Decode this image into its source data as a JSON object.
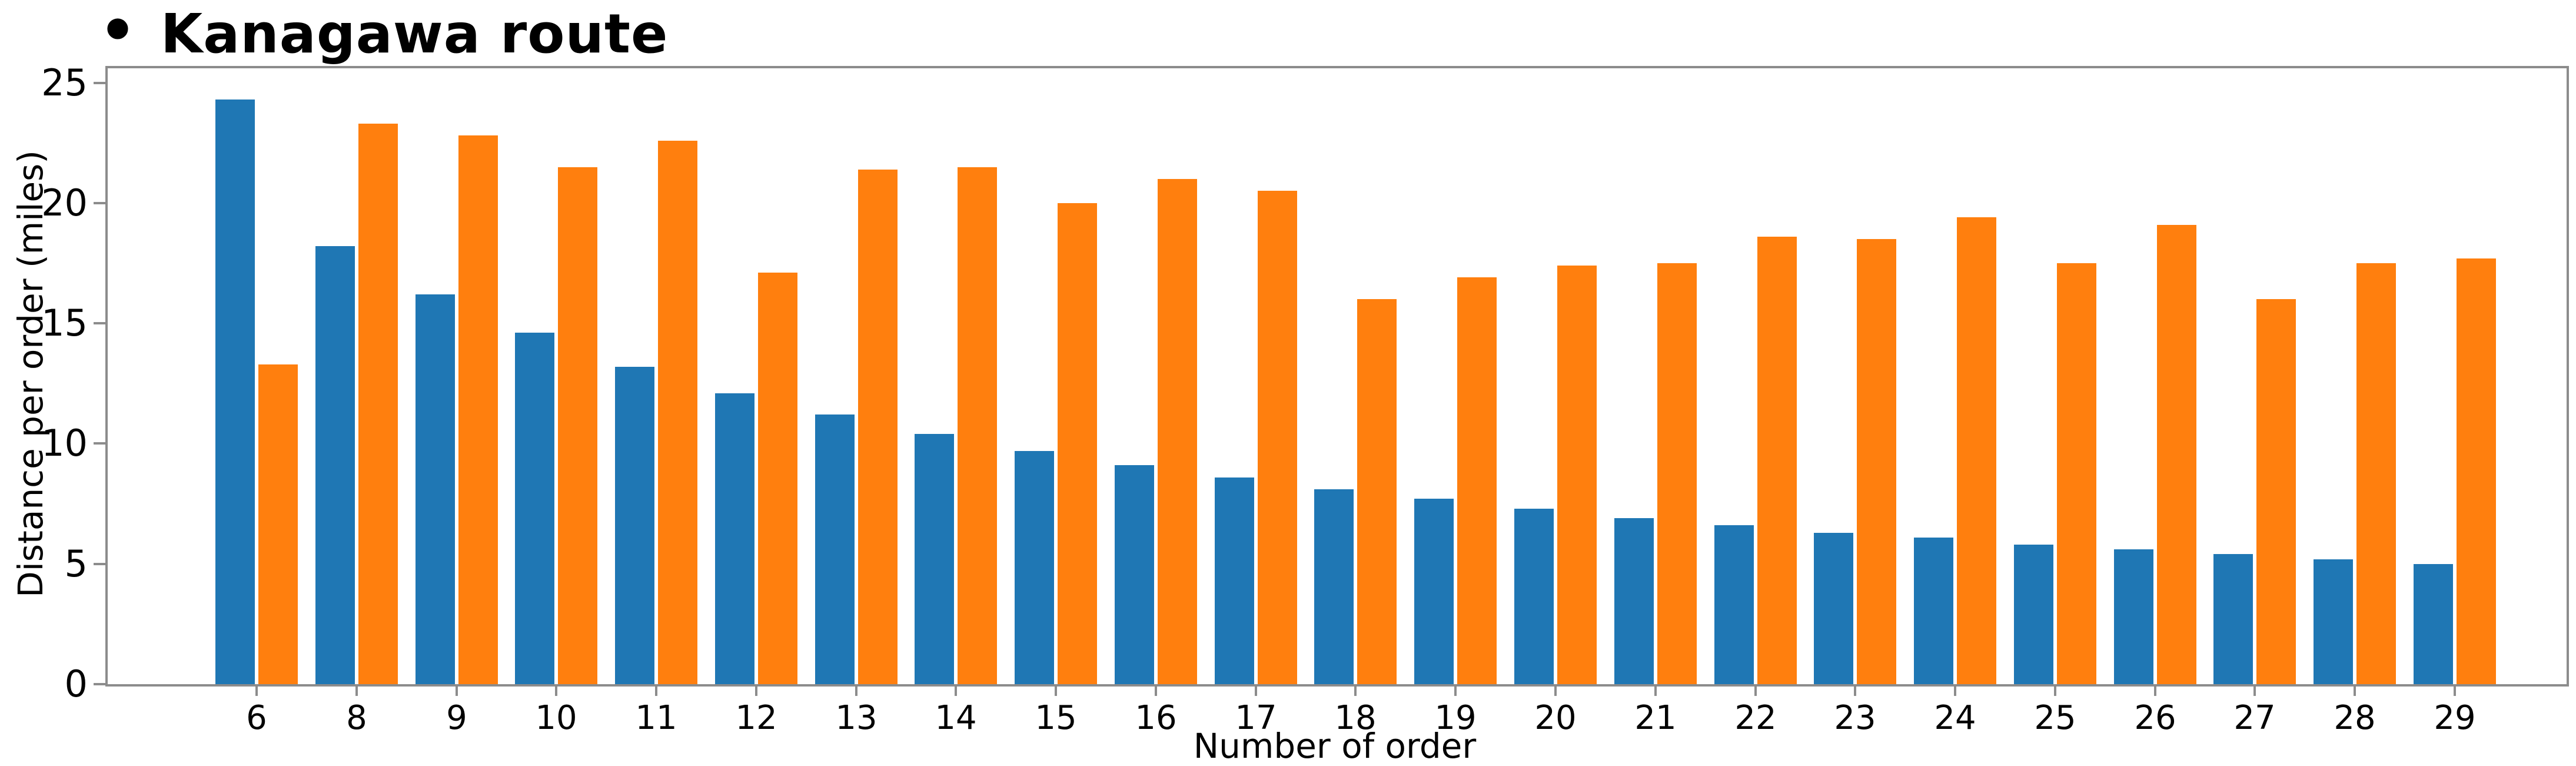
{
  "title": {
    "bullet": "•",
    "text": "Kanagawa route"
  },
  "colors": {
    "series_blue": "#1f77b4",
    "series_orange": "#ff7f0e",
    "axis": "#8c8c8c",
    "text": "#000000",
    "background": "#ffffff"
  },
  "chart_data": {
    "type": "bar",
    "title": "• Kanagawa route",
    "xlabel": "Number of order",
    "ylabel": "Distance per order (miles)",
    "categories": [
      "6",
      "8",
      "9",
      "10",
      "11",
      "12",
      "13",
      "14",
      "15",
      "16",
      "17",
      "18",
      "19",
      "20",
      "21",
      "22",
      "23",
      "24",
      "25",
      "26",
      "27",
      "28",
      "29"
    ],
    "series": [
      {
        "color_name": "blue",
        "color": "#1f77b4",
        "values": [
          24.3,
          18.2,
          16.2,
          14.6,
          13.2,
          12.1,
          11.2,
          10.4,
          9.7,
          9.1,
          8.6,
          8.1,
          7.7,
          7.3,
          6.9,
          6.6,
          6.3,
          6.1,
          5.8,
          5.6,
          5.4,
          5.2,
          5.0
        ]
      },
      {
        "color_name": "orange",
        "color": "#ff7f0e",
        "values": [
          13.3,
          23.3,
          22.8,
          21.5,
          22.6,
          17.1,
          21.4,
          21.5,
          20.0,
          21.0,
          20.5,
          16.0,
          16.9,
          17.4,
          17.5,
          18.6,
          18.5,
          19.4,
          17.5,
          19.1,
          16.0,
          17.5,
          17.7
        ]
      }
    ],
    "yticks": [
      0,
      5,
      10,
      15,
      20,
      25
    ],
    "ylim": [
      0,
      25.6
    ],
    "grid": false,
    "legend": "none"
  }
}
